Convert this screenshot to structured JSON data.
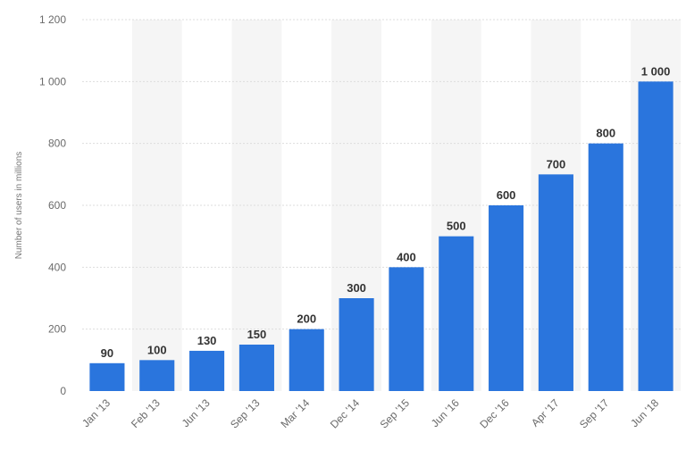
{
  "chart_data": {
    "type": "bar",
    "title": "",
    "xlabel": "",
    "ylabel": "Number of users in millions",
    "categories": [
      "Jan '13",
      "Feb '13",
      "Jun '13",
      "Sep '13",
      "Mar '14",
      "Dec '14",
      "Sep '15",
      "Jun '16",
      "Dec '16",
      "Apr '17",
      "Sep '17",
      "Jun '18"
    ],
    "values": [
      90,
      100,
      130,
      150,
      200,
      300,
      400,
      500,
      600,
      700,
      800,
      1000
    ],
    "data_labels": [
      "90",
      "100",
      "130",
      "150",
      "200",
      "300",
      "400",
      "500",
      "600",
      "700",
      "800",
      "1 000"
    ],
    "ylim": [
      0,
      1200
    ],
    "y_ticks": [
      0,
      200,
      400,
      600,
      800,
      1000,
      1200
    ],
    "y_tick_labels": [
      "0",
      "200",
      "400",
      "600",
      "800",
      "1 000",
      "1 200"
    ],
    "grid": true,
    "legend": "none",
    "colors": {
      "bar": "#2A75DD",
      "band": "#F5F5F5",
      "grid": "#DDDDDD"
    }
  }
}
